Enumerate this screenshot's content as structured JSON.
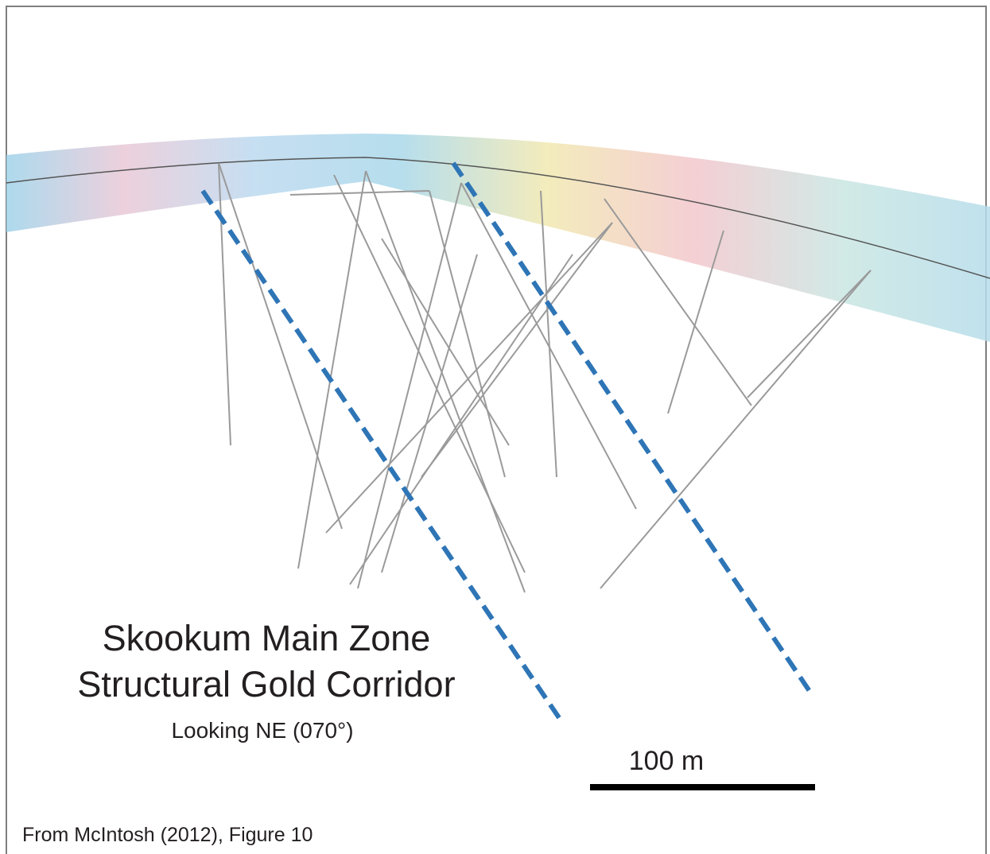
{
  "title": {
    "line1": "Skookum Main Zone",
    "line2": "Structural Gold Corridor"
  },
  "subtitle": "Looking NE (070°)",
  "scale_bar": {
    "label": "100 m"
  },
  "source": "From McIntosh (2012), Figure 10"
}
